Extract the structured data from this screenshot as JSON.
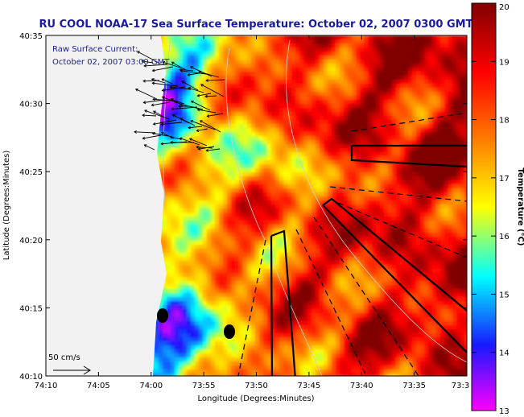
{
  "chart_data": {
    "type": "heatmap",
    "title": "RU COOL  NOAA-17  Sea Surface Temperature:  October 02, 2007 0300 GMT",
    "xlabel": "Longitude (Degrees:Minutes)",
    "ylabel": "Latitude (Degrees:Minutes)",
    "x_ticks": [
      "74:10",
      "74:05",
      "74:00",
      "73:55",
      "73:50",
      "73:45",
      "73:40",
      "73:35",
      "73:3"
    ],
    "y_ticks": [
      "40:35",
      "40:30",
      "40:25",
      "40:20",
      "40:15",
      "40:10"
    ],
    "xlim_deg": [
      -74.1667,
      -73.5
    ],
    "ylim_deg": [
      40.1667,
      40.5833
    ],
    "colorbar": {
      "label": "Temperature (°C)",
      "range": [
        13,
        20
      ],
      "ticks": [
        "20",
        "19",
        "18",
        "17",
        "16",
        "15",
        "14",
        "13"
      ],
      "colors": [
        "#ff00ff",
        "#1818ff",
        "#00ffff",
        "#ffff00",
        "#ff8000",
        "#ff0000",
        "#800000"
      ]
    },
    "current_annotation": {
      "title": "Raw Surface Current:",
      "time": "October 02, 2007 03:00 GMT",
      "scale_label": "50 cm/s"
    },
    "land_color": "#f2f2f2",
    "overlay_color": "#000000"
  }
}
